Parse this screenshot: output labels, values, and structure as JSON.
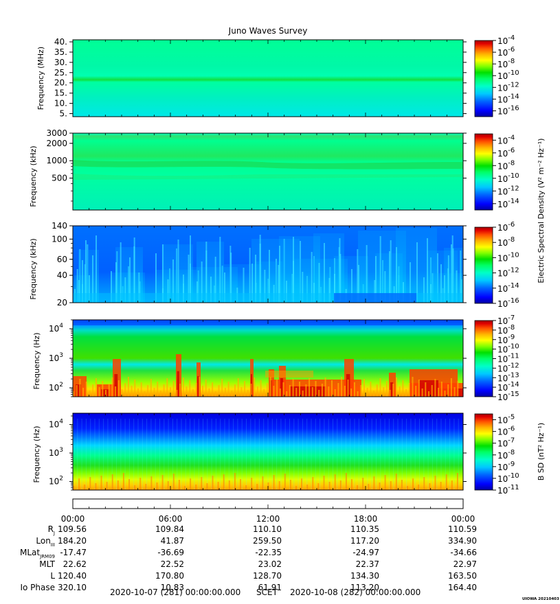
{
  "title": "Juno Waves Survey",
  "credit": "UIOWA 20210403",
  "colors": {
    "scale": [
      "#0000a0",
      "#0000ff",
      "#0064ff",
      "#00c8ff",
      "#00ffc8",
      "#00ff64",
      "#00e000",
      "#80ff00",
      "#ffff00",
      "#ffb400",
      "#ff5000",
      "#e00000",
      "#a00000"
    ]
  },
  "chart_data": [
    {
      "type": "heatmap",
      "ylabel": "Frequency (MHz)",
      "yscale": "linear",
      "ylim": [
        3.5,
        41
      ],
      "yticks": [
        {
          "v": 40,
          "label": "40."
        },
        {
          "v": 35,
          "label": "35."
        },
        {
          "v": 30,
          "label": "30."
        },
        {
          "v": 25,
          "label": "25."
        },
        {
          "v": 20,
          "label": "20."
        },
        {
          "v": 15,
          "label": "15."
        },
        {
          "v": 10,
          "label": "10."
        },
        {
          "v": 5,
          "label": "5."
        }
      ],
      "colorbar_ticks": [
        "-4",
        "-6",
        "-8",
        "-10",
        "-12",
        "-14",
        "-16"
      ],
      "colorbar_range": [
        -17,
        -4
      ]
    },
    {
      "type": "heatmap",
      "ylabel": "Frequency (kHz)",
      "yscale": "log",
      "ylim": [
        140,
        3000
      ],
      "yticks": [
        {
          "v": 3000,
          "label": "3000"
        },
        {
          "v": 2000,
          "label": "2000"
        },
        {
          "v": 1000,
          "label": "1000"
        },
        {
          "v": 500,
          "label": "500"
        }
      ],
      "colorbar_ticks": [
        "-4",
        "-6",
        "-8",
        "-10",
        "-12",
        "-14"
      ],
      "colorbar_range": [
        -15,
        -3
      ],
      "colorbar_label": "Electric Spectral Density (V² m⁻² Hz⁻¹)"
    },
    {
      "type": "heatmap",
      "ylabel": "Frequency (kHz)",
      "yscale": "log",
      "ylim": [
        20,
        140
      ],
      "yticks": [
        {
          "v": 140,
          "label": "140"
        },
        {
          "v": 100,
          "label": "100"
        },
        {
          "v": 60,
          "label": "60"
        },
        {
          "v": 40,
          "label": "40"
        },
        {
          "v": 20,
          "label": "20"
        }
      ],
      "colorbar_ticks": [
        "-6",
        "-8",
        "-10",
        "-12",
        "-14",
        "-16"
      ],
      "colorbar_range": [
        -16,
        -6
      ]
    },
    {
      "type": "heatmap",
      "ylabel": "Frequency (Hz)",
      "yscale": "log",
      "ylim": [
        50,
        20000
      ],
      "yticks": [
        {
          "v": 10000,
          "exp": "4"
        },
        {
          "v": 1000,
          "exp": "3"
        },
        {
          "v": 100,
          "exp": "2"
        }
      ],
      "colorbar_ticks": [
        "-7",
        "-8",
        "-9",
        "-10",
        "-11",
        "-12",
        "-13",
        "-14",
        "-15"
      ],
      "colorbar_range": [
        -15,
        -7
      ]
    },
    {
      "type": "heatmap",
      "ylabel": "Frequency (Hz)",
      "yscale": "log",
      "ylim": [
        50,
        25000
      ],
      "yticks": [
        {
          "v": 10000,
          "exp": "4"
        },
        {
          "v": 1000,
          "exp": "3"
        },
        {
          "v": 100,
          "exp": "2"
        }
      ],
      "colorbar_ticks": [
        "-5",
        "-6",
        "-7",
        "-8",
        "-9",
        "-10",
        "-11"
      ],
      "colorbar_range": [
        -11,
        -4.5
      ],
      "colorbar_label": "B SD (nT² Hz⁻¹)"
    }
  ],
  "xaxis": {
    "range_hours": [
      0,
      24
    ],
    "tick_labels": [
      "00:00",
      "06:00",
      "12:00",
      "18:00",
      "00:00"
    ]
  },
  "ephemeris": [
    {
      "label": "R",
      "sub": "J",
      "values": [
        "109.56",
        "109.84",
        "110.10",
        "110.35",
        "110.59"
      ]
    },
    {
      "label": "Lon",
      "sub": "III",
      "values": [
        "184.20",
        "41.87",
        "259.50",
        "117.20",
        "334.90"
      ]
    },
    {
      "label": "MLat",
      "sub": "JRM09",
      "values": [
        "-17.47",
        "-36.69",
        "-22.35",
        "-24.97",
        "-34.66"
      ]
    },
    {
      "label": "MLT",
      "sub": "",
      "values": [
        "22.62",
        "22.52",
        "23.02",
        "22.37",
        "22.97"
      ]
    },
    {
      "label": "L",
      "sub": "",
      "values": [
        "120.40",
        "170.80",
        "128.70",
        "134.30",
        "163.50"
      ]
    },
    {
      "label": "Io Phase",
      "sub": "",
      "values": [
        "320.10",
        "10.83",
        "61.91",
        "113.20",
        "164.40"
      ]
    }
  ],
  "footer": {
    "start": "2020-10-07 (281) 00:00:00.000",
    "scet": "SCET",
    "end": "2020-10-08 (282) 00:00:00.000"
  }
}
